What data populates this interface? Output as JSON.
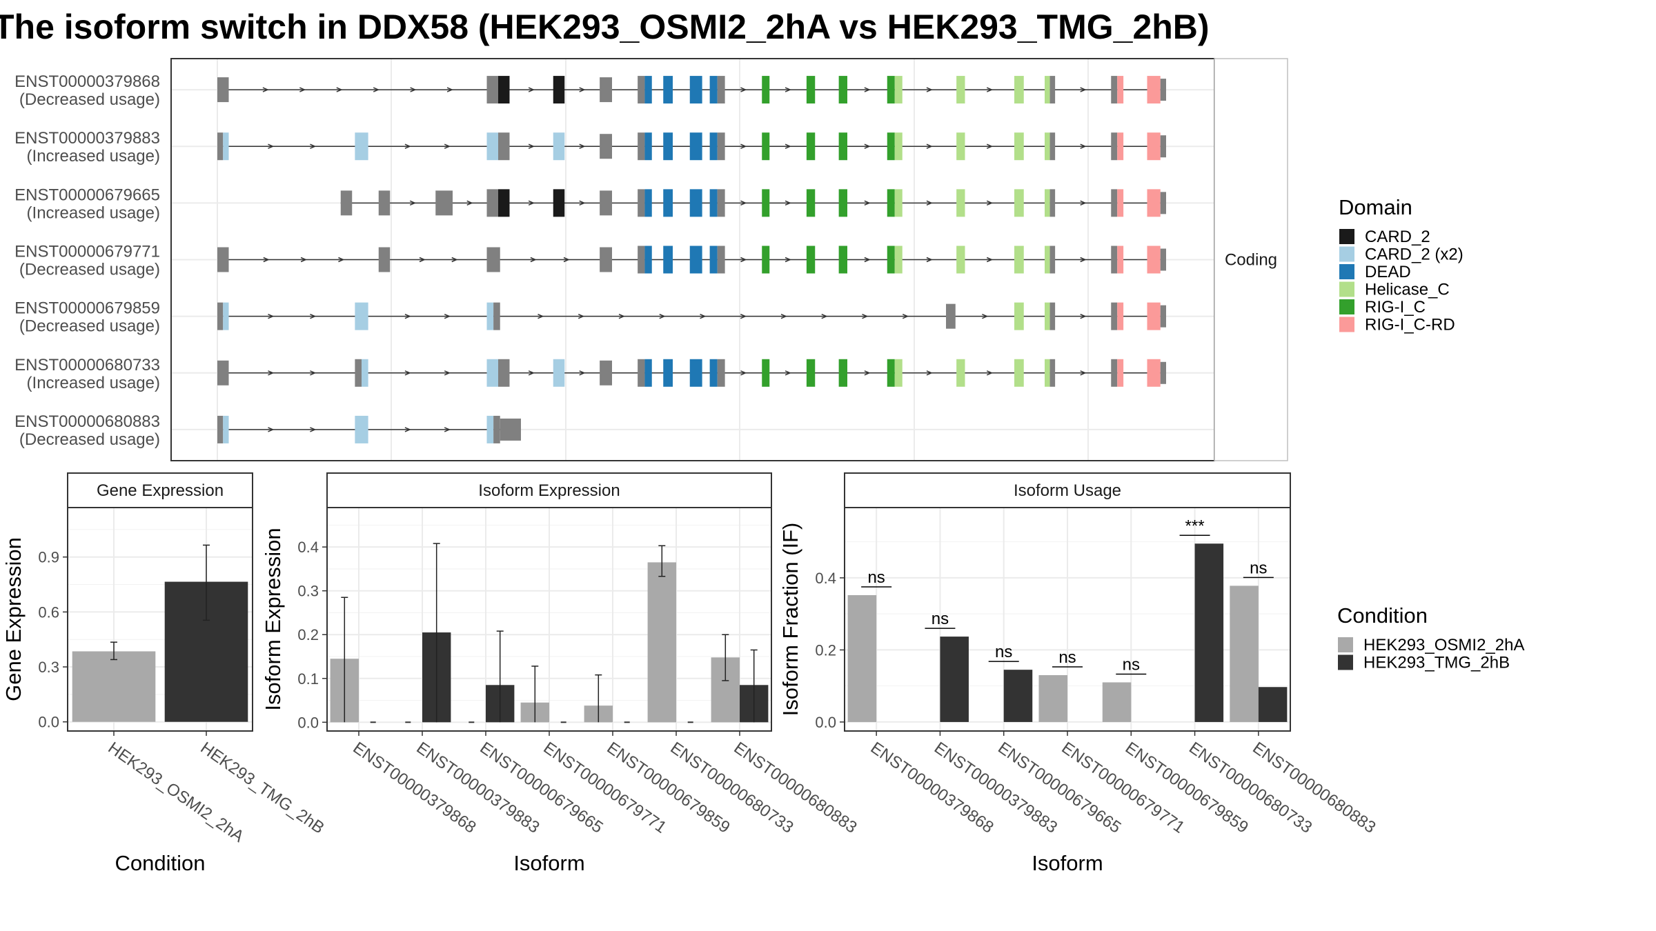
{
  "title": "The isoform switch in DDX58 (HEK293_OSMI2_2hA vs HEK293_TMG_2hB)",
  "colors": {
    "CARD_2": "#1a1a1a",
    "CARD_2 (x2)": "#a6cee3",
    "DEAD": "#1f78b4",
    "Helicase_C": "#b2df8a",
    "RIG-I_C": "#33a02c",
    "RIG-I_C-RD": "#fb9a99",
    "noncoding": "#808080",
    "cond1": "#a9a9a9",
    "cond2": "#333333"
  },
  "chart_data": [
    {
      "type": "gene-structure",
      "strip_label": "Coding",
      "coordinate_range": [
        0,
        1000
      ],
      "transcripts": [
        {
          "id": "ENST00000379868",
          "usage": "(Decreased usage)",
          "exons": [
            {
              "s": 0,
              "e": 12,
              "d": "nc"
            },
            {
              "s": 284,
              "e": 308,
              "d": "nc+CARD_2"
            },
            {
              "s": 354,
              "e": 366,
              "d": "CARD_2"
            },
            {
              "s": 403,
              "e": 416,
              "d": "nc"
            },
            {
              "s": 443,
              "e": 458,
              "d": "nc+DEAD"
            },
            {
              "s": 470,
              "e": 480,
              "d": "DEAD"
            },
            {
              "s": 498,
              "e": 511,
              "d": "DEAD"
            },
            {
              "s": 519,
              "e": 535,
              "d": "DEAD+nc"
            },
            {
              "s": 574,
              "e": 582,
              "d": "RIG-I_C"
            },
            {
              "s": 621,
              "e": 630,
              "d": "RIG-I_C"
            },
            {
              "s": 655,
              "e": 664,
              "d": "RIG-I_C"
            },
            {
              "s": 706,
              "e": 722,
              "d": "RIG-I_C+Helicase_C"
            },
            {
              "s": 779,
              "e": 788,
              "d": "Helicase_C"
            },
            {
              "s": 840,
              "e": 850,
              "d": "Helicase_C"
            },
            {
              "s": 872,
              "e": 883,
              "d": "Helicase_C+nc"
            },
            {
              "s": 942,
              "e": 955,
              "d": "nc+RIG-I_C-RD"
            },
            {
              "s": 980,
              "e": 994,
              "d": "RIG-I_C-RD"
            },
            {
              "s": 994,
              "e": 1000,
              "d": "utr"
            }
          ]
        },
        {
          "id": "ENST00000379883",
          "usage": "(Increased usage)",
          "exons": [
            {
              "s": 0,
              "e": 12,
              "d": "nc+CARD_2 (x2)"
            },
            {
              "s": 145,
              "e": 159,
              "d": "CARD_2 (x2)"
            },
            {
              "s": 284,
              "e": 308,
              "d": "CARD_2 (x2)+nc"
            },
            {
              "s": 354,
              "e": 366,
              "d": "CARD_2 (x2)"
            },
            {
              "s": 403,
              "e": 416,
              "d": "nc"
            },
            {
              "s": 443,
              "e": 458,
              "d": "nc+DEAD"
            },
            {
              "s": 470,
              "e": 480,
              "d": "DEAD"
            },
            {
              "s": 498,
              "e": 511,
              "d": "DEAD"
            },
            {
              "s": 519,
              "e": 535,
              "d": "DEAD+nc"
            },
            {
              "s": 574,
              "e": 582,
              "d": "RIG-I_C"
            },
            {
              "s": 621,
              "e": 630,
              "d": "RIG-I_C"
            },
            {
              "s": 655,
              "e": 664,
              "d": "RIG-I_C"
            },
            {
              "s": 706,
              "e": 722,
              "d": "RIG-I_C+Helicase_C"
            },
            {
              "s": 779,
              "e": 788,
              "d": "Helicase_C"
            },
            {
              "s": 840,
              "e": 850,
              "d": "Helicase_C"
            },
            {
              "s": 872,
              "e": 883,
              "d": "Helicase_C+nc"
            },
            {
              "s": 942,
              "e": 955,
              "d": "nc+RIG-I_C-RD"
            },
            {
              "s": 980,
              "e": 994,
              "d": "RIG-I_C-RD"
            },
            {
              "s": 994,
              "e": 1000,
              "d": "utr"
            }
          ]
        },
        {
          "id": "ENST00000679665",
          "usage": "(Increased usage)",
          "exons": [
            {
              "s": 130,
              "e": 142,
              "d": "nc"
            },
            {
              "s": 170,
              "e": 182,
              "d": "nc"
            },
            {
              "s": 230,
              "e": 248,
              "d": "nc"
            },
            {
              "s": 284,
              "e": 308,
              "d": "nc+CARD_2"
            },
            {
              "s": 354,
              "e": 366,
              "d": "CARD_2"
            },
            {
              "s": 403,
              "e": 416,
              "d": "nc"
            },
            {
              "s": 443,
              "e": 458,
              "d": "nc+DEAD"
            },
            {
              "s": 470,
              "e": 480,
              "d": "DEAD"
            },
            {
              "s": 498,
              "e": 511,
              "d": "DEAD"
            },
            {
              "s": 519,
              "e": 535,
              "d": "DEAD+nc"
            },
            {
              "s": 574,
              "e": 582,
              "d": "RIG-I_C"
            },
            {
              "s": 621,
              "e": 630,
              "d": "RIG-I_C"
            },
            {
              "s": 655,
              "e": 664,
              "d": "RIG-I_C"
            },
            {
              "s": 706,
              "e": 722,
              "d": "RIG-I_C+Helicase_C"
            },
            {
              "s": 779,
              "e": 788,
              "d": "Helicase_C"
            },
            {
              "s": 840,
              "e": 850,
              "d": "Helicase_C"
            },
            {
              "s": 872,
              "e": 883,
              "d": "Helicase_C+nc"
            },
            {
              "s": 942,
              "e": 955,
              "d": "nc+RIG-I_C-RD"
            },
            {
              "s": 980,
              "e": 994,
              "d": "RIG-I_C-RD"
            },
            {
              "s": 994,
              "e": 1000,
              "d": "utr"
            }
          ]
        },
        {
          "id": "ENST00000679771",
          "usage": "(Decreased usage)",
          "exons": [
            {
              "s": 0,
              "e": 12,
              "d": "nc"
            },
            {
              "s": 170,
              "e": 182,
              "d": "nc"
            },
            {
              "s": 284,
              "e": 298,
              "d": "nc"
            },
            {
              "s": 403,
              "e": 416,
              "d": "nc"
            },
            {
              "s": 443,
              "e": 458,
              "d": "nc+DEAD"
            },
            {
              "s": 470,
              "e": 480,
              "d": "DEAD"
            },
            {
              "s": 498,
              "e": 511,
              "d": "DEAD"
            },
            {
              "s": 519,
              "e": 535,
              "d": "DEAD+nc"
            },
            {
              "s": 574,
              "e": 582,
              "d": "RIG-I_C"
            },
            {
              "s": 621,
              "e": 630,
              "d": "RIG-I_C"
            },
            {
              "s": 655,
              "e": 664,
              "d": "RIG-I_C"
            },
            {
              "s": 706,
              "e": 722,
              "d": "RIG-I_C+Helicase_C"
            },
            {
              "s": 779,
              "e": 788,
              "d": "Helicase_C"
            },
            {
              "s": 840,
              "e": 850,
              "d": "Helicase_C"
            },
            {
              "s": 872,
              "e": 883,
              "d": "Helicase_C+nc"
            },
            {
              "s": 942,
              "e": 955,
              "d": "nc+RIG-I_C-RD"
            },
            {
              "s": 980,
              "e": 994,
              "d": "RIG-I_C-RD"
            },
            {
              "s": 994,
              "e": 1000,
              "d": "utr"
            }
          ]
        },
        {
          "id": "ENST00000679859",
          "usage": "(Decreased usage)",
          "exons": [
            {
              "s": 0,
              "e": 12,
              "d": "nc+CARD_2 (x2)"
            },
            {
              "s": 145,
              "e": 159,
              "d": "CARD_2 (x2)"
            },
            {
              "s": 284,
              "e": 298,
              "d": "CARD_2 (x2)+nc"
            },
            {
              "s": 768,
              "e": 778,
              "d": "nc"
            },
            {
              "s": 840,
              "e": 850,
              "d": "Helicase_C"
            },
            {
              "s": 872,
              "e": 883,
              "d": "Helicase_C+nc"
            },
            {
              "s": 942,
              "e": 955,
              "d": "nc+RIG-I_C-RD"
            },
            {
              "s": 980,
              "e": 994,
              "d": "RIG-I_C-RD"
            },
            {
              "s": 994,
              "e": 1000,
              "d": "utr"
            }
          ]
        },
        {
          "id": "ENST00000680733",
          "usage": "(Increased usage)",
          "exons": [
            {
              "s": 0,
              "e": 12,
              "d": "nc"
            },
            {
              "s": 145,
              "e": 159,
              "d": "nc+CARD_2 (x2)"
            },
            {
              "s": 284,
              "e": 308,
              "d": "CARD_2 (x2)+nc"
            },
            {
              "s": 354,
              "e": 366,
              "d": "CARD_2 (x2)"
            },
            {
              "s": 403,
              "e": 416,
              "d": "nc"
            },
            {
              "s": 443,
              "e": 458,
              "d": "nc+DEAD"
            },
            {
              "s": 470,
              "e": 480,
              "d": "DEAD"
            },
            {
              "s": 498,
              "e": 511,
              "d": "DEAD"
            },
            {
              "s": 519,
              "e": 535,
              "d": "DEAD+nc"
            },
            {
              "s": 574,
              "e": 582,
              "d": "RIG-I_C"
            },
            {
              "s": 621,
              "e": 630,
              "d": "RIG-I_C"
            },
            {
              "s": 655,
              "e": 664,
              "d": "RIG-I_C"
            },
            {
              "s": 706,
              "e": 722,
              "d": "RIG-I_C+Helicase_C"
            },
            {
              "s": 779,
              "e": 788,
              "d": "Helicase_C"
            },
            {
              "s": 840,
              "e": 850,
              "d": "Helicase_C"
            },
            {
              "s": 872,
              "e": 883,
              "d": "Helicase_C+nc"
            },
            {
              "s": 942,
              "e": 955,
              "d": "nc+RIG-I_C-RD"
            },
            {
              "s": 980,
              "e": 994,
              "d": "RIG-I_C-RD"
            },
            {
              "s": 994,
              "e": 1000,
              "d": "utr"
            }
          ]
        },
        {
          "id": "ENST00000680883",
          "usage": "(Decreased usage)",
          "exons": [
            {
              "s": 0,
              "e": 12,
              "d": "nc+CARD_2 (x2)"
            },
            {
              "s": 145,
              "e": 159,
              "d": "CARD_2 (x2)"
            },
            {
              "s": 284,
              "e": 298,
              "d": "CARD_2 (x2)+nc"
            },
            {
              "s": 298,
              "e": 320,
              "d": "utr"
            }
          ]
        }
      ]
    },
    {
      "type": "bar",
      "name": "gene-expression",
      "strip_label": "Gene Expression",
      "ylabel": "Gene Expression",
      "xlabel": "Condition",
      "ylim": [
        -0.05,
        1.17
      ],
      "yticks": [
        0.0,
        0.3,
        0.6,
        0.9
      ],
      "ytick_labels": [
        "0.0",
        "0.3",
        "0.6",
        "0.9"
      ],
      "categories": [
        "HEK293_OSMI2_2hA",
        "HEK293_TMG_2hB"
      ],
      "values": [
        0.385,
        0.765
      ],
      "error_low": [
        0.34,
        0.555
      ],
      "error_high": [
        0.435,
        0.965
      ]
    },
    {
      "type": "bar",
      "name": "isoform-expression",
      "strip_label": "Isoform Expression",
      "ylabel": "Isoform Expression",
      "xlabel": "Isoform",
      "ylim": [
        -0.02,
        0.49
      ],
      "yticks": [
        0.0,
        0.1,
        0.2,
        0.3,
        0.4
      ],
      "ytick_labels": [
        "0.0",
        "0.1",
        "0.2",
        "0.3",
        "0.4"
      ],
      "categories": [
        "ENST00000379868",
        "ENST00000379883",
        "ENST00000679665",
        "ENST00000679771",
        "ENST00000679859",
        "ENST00000680733",
        "ENST00000680883"
      ],
      "series": [
        {
          "name": "HEK293_OSMI2_2hA",
          "values": [
            0.145,
            0.0,
            0.0,
            0.045,
            0.038,
            0.365,
            0.148
          ],
          "error_low": [
            0.0,
            0.0,
            0.0,
            0.0,
            0.0,
            0.333,
            0.095
          ],
          "error_high": [
            0.285,
            0.0,
            0.0,
            0.128,
            0.108,
            0.403,
            0.2
          ]
        },
        {
          "name": "HEK293_TMG_2hB",
          "values": [
            0.0,
            0.205,
            0.085,
            0.0,
            0.0,
            0.0,
            0.085
          ],
          "error_low": [
            0.0,
            0.0,
            0.0,
            0.0,
            0.0,
            0.0,
            0.0
          ],
          "error_high": [
            0.0,
            0.408,
            0.208,
            0.0,
            0.0,
            0.0,
            0.165
          ]
        }
      ]
    },
    {
      "type": "bar",
      "name": "isoform-usage",
      "strip_label": "Isoform Usage",
      "ylabel": "Isoform Fraction (IF)",
      "xlabel": "Isoform",
      "ylim": [
        -0.025,
        0.595
      ],
      "yticks": [
        0.0,
        0.2,
        0.4
      ],
      "ytick_labels": [
        "0.0",
        "0.2",
        "0.4"
      ],
      "categories": [
        "ENST00000379868",
        "ENST00000379883",
        "ENST00000679665",
        "ENST00000679771",
        "ENST00000679859",
        "ENST00000680733",
        "ENST00000680883"
      ],
      "series": [
        {
          "name": "HEK293_OSMI2_2hA",
          "values": [
            0.352,
            0.0,
            0.0,
            0.13,
            0.11,
            0.0,
            0.378
          ]
        },
        {
          "name": "HEK293_TMG_2hB",
          "values": [
            0.0,
            0.237,
            0.145,
            0.0,
            0.0,
            0.495,
            0.097
          ]
        }
      ],
      "significance": [
        "ns",
        "ns",
        "ns",
        "ns",
        "ns",
        "***",
        "ns"
      ]
    }
  ],
  "legends": {
    "domain": {
      "title": "Domain",
      "items": [
        "CARD_2",
        "CARD_2 (x2)",
        "DEAD",
        "Helicase_C",
        "RIG-I_C",
        "RIG-I_C-RD"
      ]
    },
    "condition": {
      "title": "Condition",
      "items": [
        "HEK293_OSMI2_2hA",
        "HEK293_TMG_2hB"
      ]
    }
  }
}
